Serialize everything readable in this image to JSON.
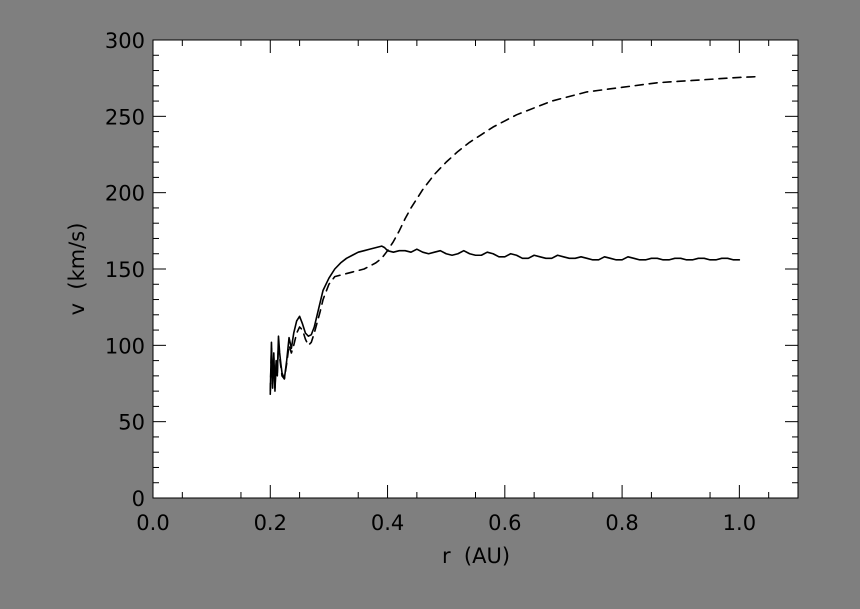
{
  "colors": {
    "background": "#7f7f7f",
    "plot_background": "#ffffff",
    "ink": "#000000"
  },
  "chart_data": {
    "type": "line",
    "xlabel": "r  (AU)",
    "ylabel": "v  (km/s)",
    "xlim": [
      0.0,
      1.1
    ],
    "ylim": [
      0,
      300
    ],
    "x_ticks": [
      0.0,
      0.2,
      0.4,
      0.6,
      0.8,
      1.0
    ],
    "x_tick_labels": [
      "0.0",
      "0.2",
      "0.4",
      "0.6",
      "0.8",
      "1.0"
    ],
    "y_ticks": [
      0,
      50,
      100,
      150,
      200,
      250,
      300
    ],
    "y_tick_labels": [
      "0",
      "50",
      "100",
      "150",
      "200",
      "250",
      "300"
    ],
    "grid": false,
    "series": [
      {
        "style": "solid",
        "x": [
          0.2,
          0.202,
          0.204,
          0.206,
          0.208,
          0.21,
          0.212,
          0.214,
          0.216,
          0.218,
          0.22,
          0.224,
          0.228,
          0.232,
          0.236,
          0.24,
          0.245,
          0.25,
          0.255,
          0.26,
          0.265,
          0.27,
          0.275,
          0.28,
          0.285,
          0.29,
          0.3,
          0.31,
          0.32,
          0.33,
          0.34,
          0.35,
          0.36,
          0.37,
          0.38,
          0.39,
          0.395,
          0.4,
          0.41,
          0.42,
          0.43,
          0.44,
          0.45,
          0.46,
          0.47,
          0.48,
          0.49,
          0.5,
          0.51,
          0.52,
          0.53,
          0.54,
          0.55,
          0.56,
          0.57,
          0.58,
          0.59,
          0.6,
          0.61,
          0.62,
          0.63,
          0.64,
          0.65,
          0.66,
          0.67,
          0.68,
          0.69,
          0.7,
          0.71,
          0.72,
          0.73,
          0.74,
          0.75,
          0.76,
          0.77,
          0.78,
          0.79,
          0.8,
          0.81,
          0.82,
          0.83,
          0.84,
          0.85,
          0.86,
          0.87,
          0.88,
          0.89,
          0.9,
          0.91,
          0.92,
          0.93,
          0.94,
          0.95,
          0.96,
          0.97,
          0.98,
          0.99,
          1.0
        ],
        "values": [
          68,
          102,
          72,
          95,
          70,
          90,
          80,
          106,
          95,
          88,
          82,
          78,
          90,
          105,
          98,
          108,
          116,
          119,
          114,
          108,
          106,
          107,
          112,
          120,
          128,
          136,
          144,
          150,
          154,
          157,
          159,
          161,
          162,
          163,
          164,
          165,
          164,
          162,
          161,
          162,
          162,
          161,
          163,
          161,
          160,
          161,
          162,
          160,
          159,
          160,
          162,
          160,
          159,
          159,
          161,
          160,
          158,
          158,
          160,
          159,
          157,
          157,
          159,
          158,
          157,
          157,
          159,
          158,
          157,
          157,
          158,
          157,
          156,
          156,
          158,
          157,
          156,
          156,
          158,
          157,
          156,
          156,
          157,
          157,
          156,
          156,
          157,
          157,
          156,
          156,
          157,
          157,
          156,
          156,
          157,
          157,
          156,
          156
        ]
      },
      {
        "style": "dashed",
        "x": [
          0.2,
          0.202,
          0.204,
          0.206,
          0.208,
          0.21,
          0.212,
          0.214,
          0.216,
          0.218,
          0.22,
          0.224,
          0.228,
          0.232,
          0.236,
          0.24,
          0.245,
          0.25,
          0.255,
          0.26,
          0.265,
          0.27,
          0.275,
          0.28,
          0.285,
          0.29,
          0.3,
          0.31,
          0.32,
          0.33,
          0.34,
          0.35,
          0.36,
          0.37,
          0.38,
          0.39,
          0.4,
          0.41,
          0.42,
          0.43,
          0.44,
          0.45,
          0.46,
          0.48,
          0.5,
          0.52,
          0.54,
          0.56,
          0.58,
          0.6,
          0.62,
          0.64,
          0.66,
          0.68,
          0.7,
          0.72,
          0.74,
          0.76,
          0.78,
          0.8,
          0.82,
          0.84,
          0.86,
          0.88,
          0.9,
          0.92,
          0.94,
          0.96,
          0.98,
          1.0,
          1.02,
          1.03
        ],
        "values": [
          70,
          98,
          75,
          92,
          72,
          88,
          82,
          100,
          92,
          86,
          80,
          78,
          88,
          100,
          95,
          100,
          108,
          112,
          110,
          104,
          100,
          102,
          108,
          115,
          122,
          130,
          140,
          145,
          146,
          147,
          148,
          149,
          150,
          152,
          154,
          157,
          162,
          168,
          175,
          183,
          190,
          196,
          202,
          212,
          220,
          227,
          233,
          238,
          243,
          247,
          251,
          254,
          257,
          260,
          262,
          264,
          266,
          267,
          268,
          269,
          270,
          271,
          272,
          272.5,
          273,
          273.5,
          274,
          274.5,
          275,
          275.5,
          275.8,
          276
        ]
      }
    ]
  }
}
